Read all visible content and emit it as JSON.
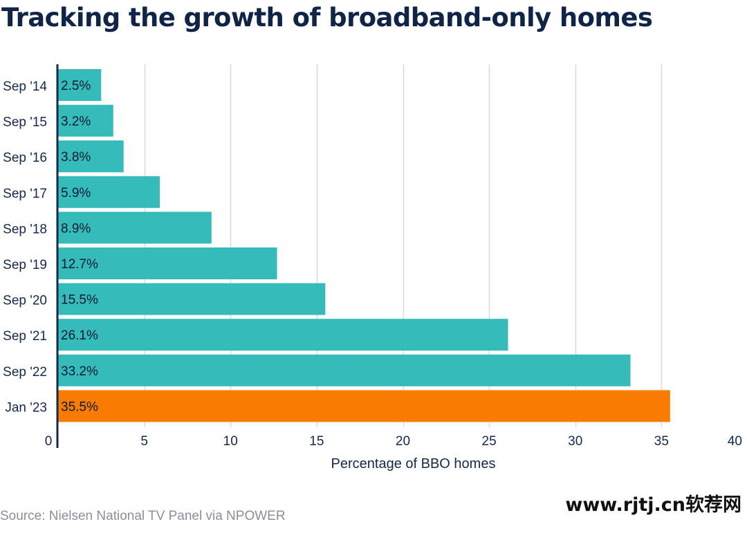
{
  "header": {
    "title": "Tracking the growth of broadband-only homes"
  },
  "footer": {
    "source": "Source: Nielsen National TV Panel via NPOWER",
    "watermark": "www.rjtj.cn软荐网"
  },
  "colors": {
    "bar": "#35bbba",
    "highlight": "#f97c00",
    "grid": "#d9dadc",
    "axis": "#13294b",
    "text": "#13294b"
  },
  "chart_data": {
    "type": "bar",
    "orientation": "horizontal",
    "title": "Tracking the growth of broadband-only homes",
    "xlabel": "Percentage of BBO homes",
    "ylabel": "",
    "xlim": [
      0,
      40
    ],
    "xticks": [
      0,
      5,
      10,
      15,
      20,
      25,
      30,
      35,
      40
    ],
    "grid": true,
    "categories": [
      "Sep '14",
      "Sep '15",
      "Sep '16",
      "Sep '17",
      "Sep '18",
      "Sep '19",
      "Sep '20",
      "Sep '21",
      "Sep '22",
      "Jan '23"
    ],
    "values": [
      2.5,
      3.2,
      3.8,
      5.9,
      8.9,
      12.7,
      15.5,
      26.1,
      33.2,
      35.5
    ],
    "data_labels": [
      "2.5%",
      "3.2%",
      "3.8%",
      "5.9%",
      "8.9%",
      "12.7%",
      "15.5%",
      "26.1%",
      "33.2%",
      "35.5%"
    ],
    "highlight_index": 9
  }
}
